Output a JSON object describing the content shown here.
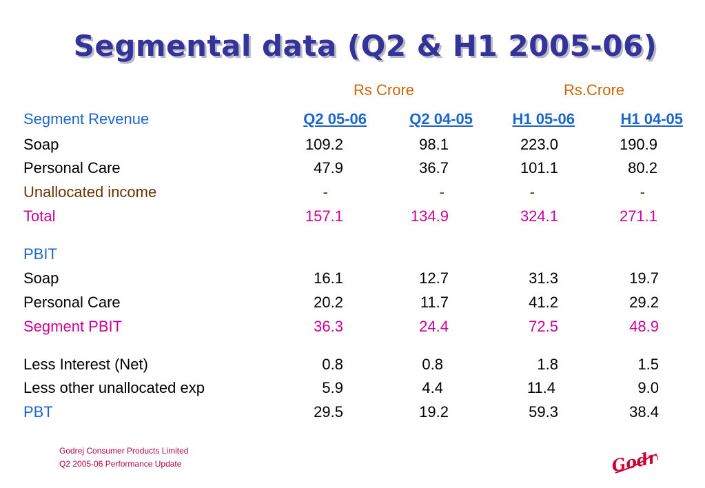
{
  "title": "Segmental data (Q2 & H1 2005-06)",
  "units": [
    "Rs Crore",
    "Rs.Crore"
  ],
  "header": {
    "label": "Segment Revenue",
    "columns": [
      "Q2 05-06",
      "Q2 04-05",
      "H1 05-06",
      "H1 04-05"
    ]
  },
  "rows": [
    {
      "label": "Soap",
      "values": [
        "109.2",
        "98.1",
        "223.0",
        "190.9"
      ]
    },
    {
      "label": "Personal Care",
      "values": [
        "47.9",
        "36.7",
        "101.1",
        "80.2"
      ]
    },
    {
      "label": "Unallocated income",
      "values": [
        "-",
        "-",
        "-",
        "-"
      ]
    },
    {
      "label": "Total",
      "values": [
        "157.1",
        "134.9",
        "324.1",
        "271.1"
      ]
    },
    {
      "label": "PBIT",
      "values": [
        "",
        "",
        "",
        ""
      ]
    },
    {
      "label": "Soap",
      "values": [
        "16.1",
        "12.7",
        "31.3",
        "19.7"
      ]
    },
    {
      "label": "Personal Care",
      "values": [
        "20.2",
        "11.7",
        "41.2",
        "29.2"
      ]
    },
    {
      "label": "Segment PBIT",
      "values": [
        "36.3",
        "24.4",
        "72.5",
        "48.9"
      ]
    },
    {
      "label": "Less Interest (Net)",
      "values": [
        "0.8",
        "0.8",
        "1.8",
        "1.5"
      ]
    },
    {
      "label": "Less other unallocated exp",
      "values": [
        "5.9",
        "4.4",
        "11.4",
        "9.0"
      ]
    },
    {
      "label": "PBT",
      "values": [
        "29.5",
        "19.2",
        "59.3",
        "38.4"
      ]
    }
  ],
  "footer": {
    "company": "Godrej Consumer Products Limited",
    "subtitle": "Q2 2005-06 Performance Update"
  },
  "logo_text": "Godrej",
  "colors": {
    "title": "#333399",
    "header_blue": "#1a66cc",
    "unit_orange": "#cc6600",
    "total_magenta": "#cc0099",
    "unallocated_brown": "#663300",
    "logo_red": "#cc0033"
  }
}
